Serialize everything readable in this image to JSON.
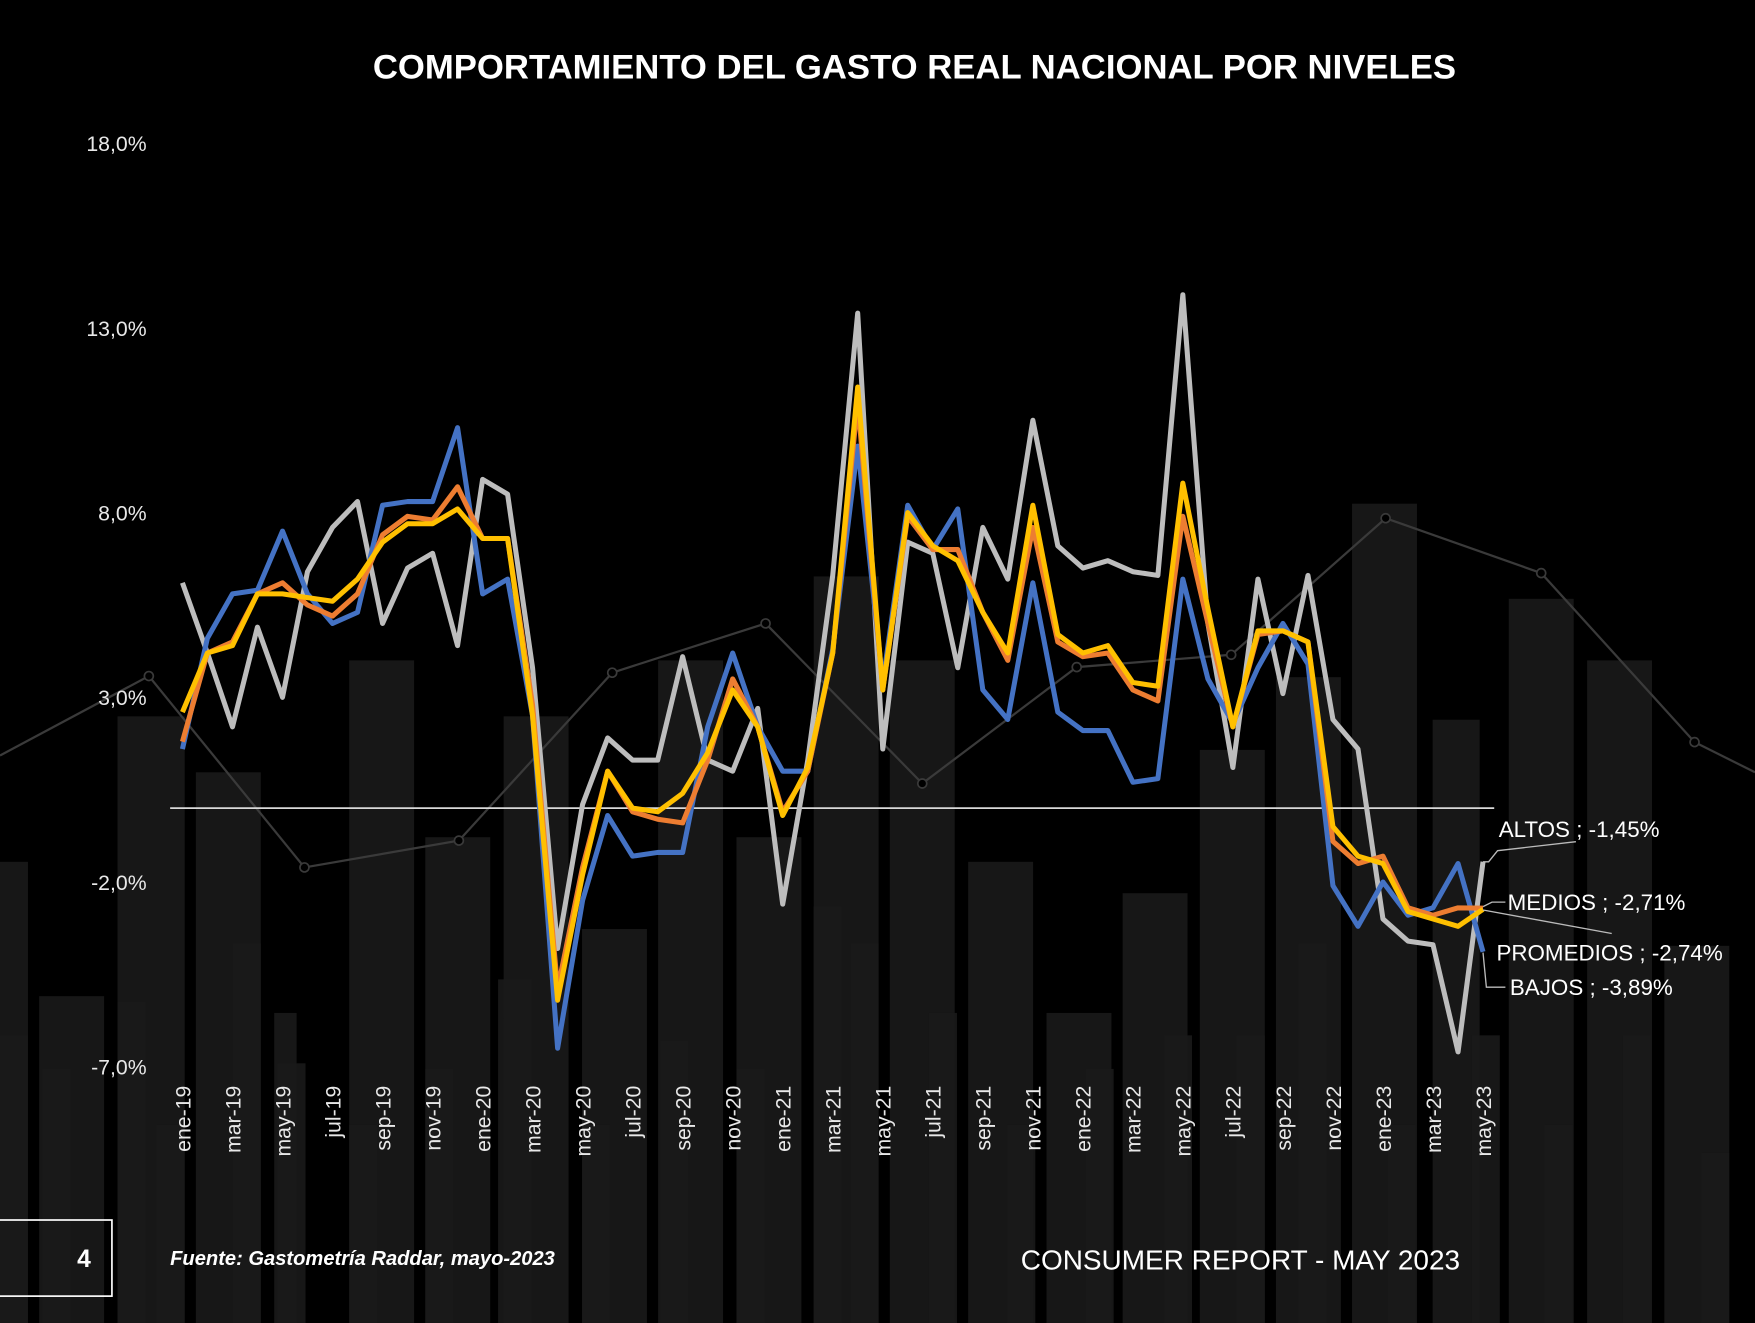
{
  "chart_data": {
    "type": "line",
    "title": "COMPORTAMIENTO DEL GASTO REAL NACIONAL POR NIVELES",
    "xlabel": "",
    "ylabel": "",
    "ylim": [
      -7.0,
      18.0
    ],
    "yticks": [
      "18,0%",
      "13,0%",
      "8,0%",
      "3,0%",
      "-2,0%",
      "-7,0%"
    ],
    "ytick_values": [
      18,
      13,
      8,
      3,
      -2,
      -7
    ],
    "grid": false,
    "baseline": 0,
    "xtick_labels": [
      "ene-19",
      "mar-19",
      "may-19",
      "jul-19",
      "sep-19",
      "nov-19",
      "ene-20",
      "mar-20",
      "may-20",
      "jul-20",
      "sep-20",
      "nov-20",
      "ene-21",
      "mar-21",
      "may-21",
      "jul-21",
      "sep-21",
      "nov-21",
      "ene-22",
      "mar-22",
      "may-22",
      "jul-22",
      "sep-22",
      "nov-22",
      "ene-23",
      "mar-23",
      "may-23"
    ],
    "x": [
      "ene-19",
      "feb-19",
      "mar-19",
      "abr-19",
      "may-19",
      "jun-19",
      "jul-19",
      "ago-19",
      "sep-19",
      "oct-19",
      "nov-19",
      "dic-19",
      "ene-20",
      "feb-20",
      "mar-20",
      "abr-20",
      "may-20",
      "jun-20",
      "jul-20",
      "ago-20",
      "sep-20",
      "oct-20",
      "nov-20",
      "dic-20",
      "ene-21",
      "feb-21",
      "mar-21",
      "abr-21",
      "may-21",
      "jun-21",
      "jul-21",
      "ago-21",
      "sep-21",
      "oct-21",
      "nov-21",
      "dic-21",
      "ene-22",
      "feb-22",
      "mar-22",
      "abr-22",
      "may-22",
      "jun-22",
      "jul-22",
      "ago-22",
      "sep-22",
      "oct-22",
      "nov-22",
      "dic-22",
      "ene-23",
      "feb-23",
      "mar-23",
      "abr-23",
      "may-23"
    ],
    "series": [
      {
        "name": "ALTOS",
        "color": "#bdbdbd",
        "label": "ALTOS ; -1,45%",
        "values": [
          6.1,
          4.2,
          2.2,
          4.9,
          3.0,
          6.4,
          7.6,
          8.3,
          5.0,
          6.5,
          6.9,
          4.4,
          8.9,
          8.5,
          3.8,
          -3.8,
          0.1,
          1.9,
          1.3,
          1.3,
          4.1,
          1.3,
          1.0,
          2.7,
          -2.6,
          1.3,
          6.3,
          13.4,
          1.6,
          7.2,
          6.9,
          3.8,
          7.6,
          6.2,
          10.5,
          7.1,
          6.5,
          6.7,
          6.4,
          6.3,
          13.9,
          5.0,
          1.1,
          6.2,
          3.1,
          6.3,
          2.4,
          1.6,
          -3.0,
          -3.6,
          -3.7,
          -6.6,
          -1.45
        ]
      },
      {
        "name": "BAJOS",
        "color": "#4472c4",
        "label": "BAJOS ; -3,89%",
        "values": [
          1.6,
          4.6,
          5.8,
          5.9,
          7.5,
          5.8,
          5.0,
          5.3,
          8.2,
          8.3,
          8.3,
          10.3,
          5.8,
          6.2,
          2.5,
          -6.5,
          -2.5,
          -0.2,
          -1.3,
          -1.2,
          -1.2,
          2.2,
          4.2,
          2.2,
          1.0,
          1.0,
          4.3,
          9.8,
          3.4,
          8.2,
          7.0,
          8.1,
          3.2,
          2.4,
          6.1,
          2.6,
          2.1,
          2.1,
          0.7,
          0.8,
          6.2,
          3.5,
          2.3,
          3.8,
          5.0,
          3.9,
          -2.1,
          -3.2,
          -2.0,
          -2.9,
          -2.7,
          -1.5,
          -3.89
        ]
      },
      {
        "name": "MEDIOS",
        "color": "#ed7d31",
        "label": "MEDIOS ; -2,71%",
        "values": [
          1.8,
          4.2,
          4.5,
          5.8,
          6.1,
          5.5,
          5.2,
          5.8,
          7.4,
          7.9,
          7.8,
          8.7,
          7.3,
          7.3,
          2.8,
          -4.9,
          -1.6,
          1.0,
          -0.1,
          -0.3,
          -0.4,
          1.3,
          3.5,
          2.2,
          -0.1,
          1.0,
          4.2,
          11.0,
          3.2,
          7.9,
          7.0,
          7.0,
          5.3,
          4.0,
          7.6,
          4.5,
          4.1,
          4.2,
          3.2,
          2.9,
          7.9,
          5.0,
          2.2,
          4.7,
          4.8,
          4.5,
          -0.9,
          -1.5,
          -1.3,
          -2.7,
          -2.9,
          -2.7,
          -2.71
        ]
      },
      {
        "name": "PROMEDIOS",
        "color": "#ffc000",
        "label": "PROMEDIOS ; -2,74%",
        "values": [
          2.6,
          4.2,
          4.4,
          5.8,
          5.8,
          5.7,
          5.6,
          6.2,
          7.2,
          7.7,
          7.7,
          8.1,
          7.3,
          7.3,
          2.5,
          -5.2,
          -1.8,
          1.0,
          0.0,
          -0.1,
          0.4,
          1.5,
          3.2,
          2.2,
          -0.2,
          1.1,
          4.2,
          11.4,
          3.2,
          8.0,
          7.1,
          6.7,
          5.3,
          4.2,
          8.2,
          4.7,
          4.2,
          4.4,
          3.4,
          3.3,
          8.8,
          5.4,
          2.2,
          4.8,
          4.8,
          4.5,
          -0.5,
          -1.3,
          -1.5,
          -2.8,
          -3.0,
          -3.2,
          -2.74
        ]
      }
    ]
  },
  "footer": {
    "page_number": "4",
    "source": "Fuente: Gastometría Raddar, mayo-2023",
    "report": "CONSUMER REPORT - MAY 2023"
  }
}
